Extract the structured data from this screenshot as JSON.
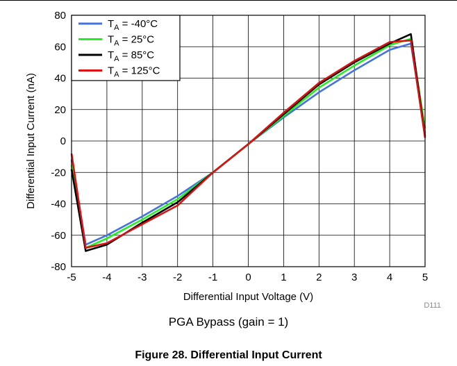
{
  "chart_data": {
    "type": "line",
    "xlabel": "Differential Input Voltage (V)",
    "ylabel": "Differential Input Current (nA)",
    "xlim": [
      -5,
      5
    ],
    "ylim": [
      -80,
      80
    ],
    "xticks": [
      -5,
      -4,
      -3,
      -2,
      -1,
      0,
      1,
      2,
      3,
      4,
      5
    ],
    "yticks": [
      -80,
      -60,
      -40,
      -20,
      0,
      20,
      40,
      60,
      80
    ],
    "grid": true,
    "legend_position": "top-left",
    "series": [
      {
        "name_main": "T",
        "name_sub": "A",
        "name_rest": " = -40°C",
        "color": "#4472e0",
        "x": [
          -5,
          -4.6,
          -4,
          -3,
          -2,
          -1,
          0,
          1,
          2,
          3,
          4,
          4.6,
          5
        ],
        "y": [
          -12,
          -66,
          -60,
          -48,
          -35,
          -20,
          -2,
          15,
          31,
          45,
          58,
          62,
          5
        ]
      },
      {
        "name_main": "T",
        "name_sub": "A",
        "name_rest": " = 25°C",
        "color": "#22ee22",
        "x": [
          -5,
          -4.6,
          -4,
          -3,
          -2,
          -1,
          0,
          1,
          2,
          3,
          4,
          4.6,
          5
        ],
        "y": [
          -15,
          -68,
          -62,
          -50,
          -37,
          -20,
          -2,
          16,
          34,
          48,
          61,
          65,
          8
        ]
      },
      {
        "name_main": "T",
        "name_sub": "A",
        "name_rest": " = 85°C",
        "color": "#000000",
        "x": [
          -5,
          -4.6,
          -4,
          -3,
          -2,
          -1,
          0,
          1,
          2,
          3,
          4,
          4.6,
          5
        ],
        "y": [
          -18,
          -70,
          -66,
          -52,
          -39,
          -20,
          -2,
          17,
          36,
          50,
          62,
          68,
          3
        ]
      },
      {
        "name_main": "T",
        "name_sub": "A",
        "name_rest": " = 125°C",
        "color": "#dd1111",
        "x": [
          -5,
          -4.6,
          -4,
          -3,
          -2,
          -1,
          0,
          1,
          2,
          3,
          4,
          4.6,
          5
        ],
        "y": [
          -8,
          -68,
          -65,
          -53,
          -41,
          -20,
          -2,
          18,
          37,
          51,
          63,
          64,
          2
        ]
      }
    ],
    "code_label": "D111"
  },
  "subtitle": "PGA Bypass (gain = 1)",
  "figure_caption": "Figure 28. Differential Input Current"
}
